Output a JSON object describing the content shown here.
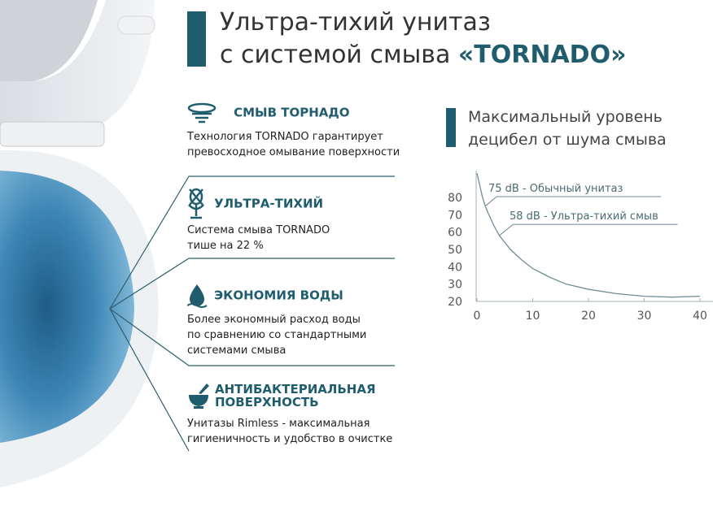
{
  "title": {
    "line1": "Ультра-тихий унитаз",
    "line2_prefix": "с системой смыва ",
    "line2_brand": "«TORNADO»"
  },
  "features": [
    {
      "icon": "tornado-icon",
      "heading": "СМЫВ ТОРНАДО",
      "text": [
        "Технология TORNADO гарантирует",
        "превосходное омывание поверхности"
      ]
    },
    {
      "icon": "muted-microphone-icon",
      "heading": "УЛЬТРА-ТИХИЙ",
      "text": [
        "Система смыва TORNADO",
        "тише на 22 %"
      ]
    },
    {
      "icon": "water-drop-icon",
      "heading": "ЭКОНОМИЯ ВОДЫ",
      "text": [
        "Более экономный расход воды",
        "по сравнению со стандартными",
        "системами смыва"
      ]
    },
    {
      "icon": "mortar-pestle-icon",
      "heading": "АНТИБАКТЕРИАЛЬНАЯ ПОВЕРХНОСТЬ",
      "heading_lines": [
        "АНТИБАКТЕРИАЛЬНАЯ",
        "ПОВЕРХНОСТЬ"
      ],
      "text": [
        "Унитазы Rimless - максимальная",
        "гигиеничность и удобство в очистке"
      ]
    }
  ],
  "accent_color": "#1f5d6e",
  "chart_data": {
    "type": "line",
    "title": "Максимальный уровень децибел от шума смыва",
    "title_lines": [
      "Максимальный уровень",
      "децибел от шума смыва"
    ],
    "xlim": [
      0,
      42
    ],
    "ylim": [
      20,
      95
    ],
    "x_ticks": [
      "0",
      "10",
      "20",
      "30",
      "40"
    ],
    "y_ticks": [
      "20",
      "30",
      "40",
      "50",
      "60",
      "70",
      "80"
    ],
    "series": [
      {
        "x": [
          0,
          1,
          1.5,
          2,
          3,
          4,
          6,
          8,
          10,
          13,
          16,
          20,
          25,
          30,
          35,
          40
        ],
        "y": [
          94,
          80,
          75,
          71,
          64,
          58,
          50,
          44,
          39,
          34,
          30,
          27,
          24.5,
          23,
          22.5,
          23
        ]
      }
    ],
    "annotations": [
      {
        "x": 1.5,
        "y": 75,
        "text": "75 dB - Обычный унитаз"
      },
      {
        "x": 4,
        "y": 58,
        "text": "58 dB - Ультра-тихий смыв"
      }
    ],
    "grid": false
  }
}
